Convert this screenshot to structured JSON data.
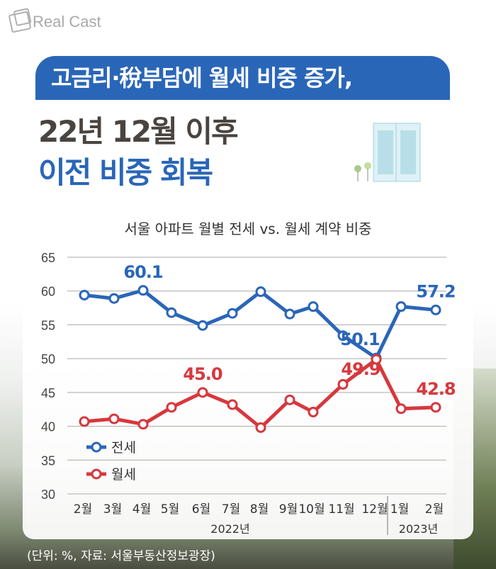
{
  "brand": "Real Cast",
  "headline": {
    "line1": "고금리·稅부담에 월세 비중 증가,",
    "line2": "22년 12월 이후",
    "line3": "이전 비중 회복"
  },
  "source": "(단위: %, 자료: 서울부동산정보광장)",
  "colors": {
    "jeonse": "#2a66b8",
    "wolse": "#d6383e"
  },
  "chart_data": {
    "type": "line",
    "title": "서울 아파트 월별 전세 vs. 월세 계약 비중",
    "categories": [
      "2월",
      "3월",
      "4월",
      "5월",
      "6월",
      "7월",
      "8월",
      "9월",
      "10월",
      "11월",
      "12월",
      "1월",
      "2월"
    ],
    "year_groups": [
      {
        "label": "2022년",
        "count": 11
      },
      {
        "label": "2023년",
        "count": 2
      }
    ],
    "ylim": [
      30,
      65
    ],
    "yticks": [
      30,
      35,
      40,
      45,
      50,
      55,
      60,
      65
    ],
    "grid": true,
    "legend": "bottom-left",
    "series": [
      {
        "name": "전세",
        "values": [
          59.4,
          58.9,
          60.1,
          56.8,
          54.9,
          56.7,
          59.9,
          56.6,
          57.7,
          53.4,
          50.1,
          57.7,
          57.2
        ],
        "labels": {
          "2": "60.1",
          "10": "50.1",
          "12": "57.2"
        }
      },
      {
        "name": "월세",
        "values": [
          40.7,
          41.1,
          40.3,
          42.8,
          45.0,
          43.2,
          39.8,
          43.9,
          42.1,
          46.2,
          49.9,
          42.6,
          42.8
        ],
        "labels": {
          "4": "45.0",
          "10": "49.9",
          "12": "42.8"
        }
      }
    ]
  }
}
